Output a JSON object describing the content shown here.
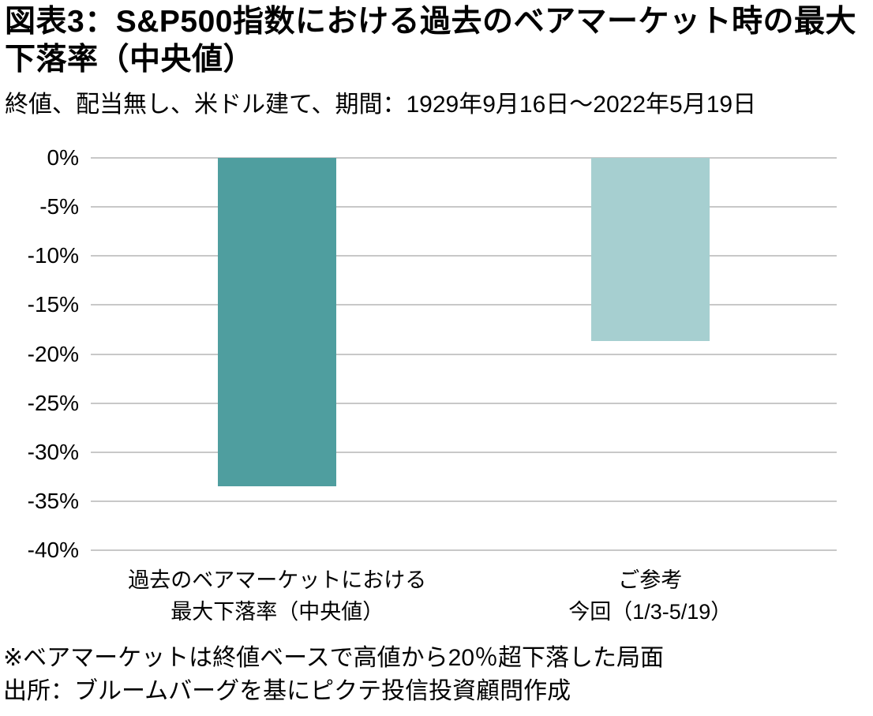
{
  "chart_data": {
    "type": "bar",
    "title": "図表3：S&P500指数における過去のベアマーケット時の最大下落率（中央値）",
    "subtitle": "終値、配当無し、米ドル建て、期間：1929年9月16日～2022年5月19日",
    "categories": [
      [
        "過去のベアマーケットにおける",
        "最大下落率（中央値）"
      ],
      [
        "ご参考",
        "今回（1/3-5/19）"
      ]
    ],
    "values": [
      -33.5,
      -18.7
    ],
    "bar_colors": [
      "#4f9e9f",
      "#a6cfd0"
    ],
    "xlabel": "",
    "ylabel": "",
    "ylim": [
      -40,
      0
    ],
    "ytick_labels": [
      "0%",
      "-5%",
      "-10%",
      "-15%",
      "-20%",
      "-25%",
      "-30%",
      "-35%",
      "-40%"
    ],
    "gridline_color": "#c8c8c8",
    "legend": "none",
    "grid": "horizontal"
  },
  "footnotes": {
    "note": "※ベアマーケットは終値ベースで高値から20％超下落した局面",
    "source": "出所：ブルームバーグを基にピクテ投信投資顧問作成"
  }
}
